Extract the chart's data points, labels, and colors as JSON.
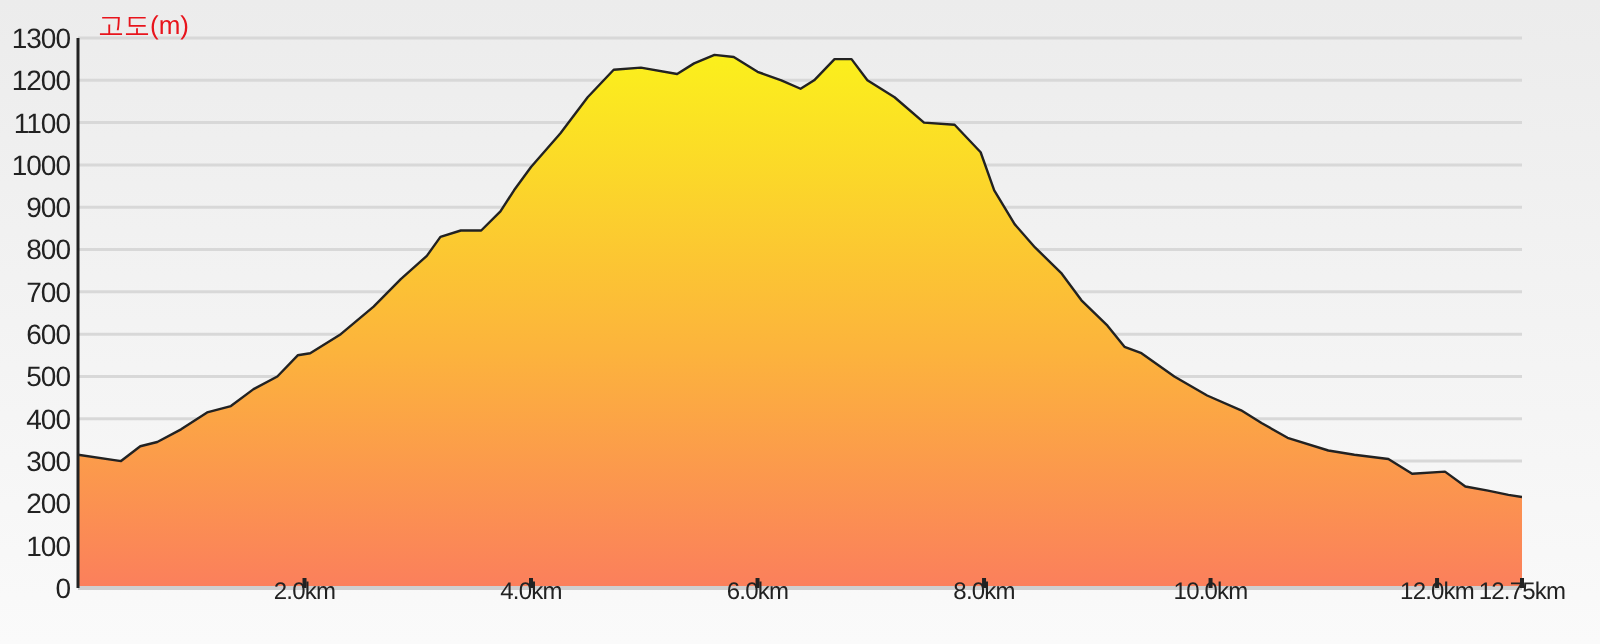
{
  "chart_data": {
    "type": "area",
    "ylabel": "고도(m)",
    "x": [
      0,
      0.38,
      0.55,
      0.7,
      0.91,
      1.14,
      1.35,
      1.55,
      1.76,
      1.94,
      2.05,
      2.32,
      2.61,
      2.85,
      3.08,
      3.2,
      3.38,
      3.56,
      3.73,
      3.85,
      4.0,
      4.26,
      4.5,
      4.73,
      4.97,
      5.29,
      5.44,
      5.62,
      5.79,
      6.0,
      6.21,
      6.38,
      6.5,
      6.68,
      6.83,
      6.97,
      7.21,
      7.47,
      7.74,
      7.97,
      8.09,
      8.27,
      8.45,
      8.68,
      8.86,
      9.09,
      9.24,
      9.39,
      9.68,
      9.97,
      10.27,
      10.45,
      10.68,
      11.04,
      11.27,
      11.57,
      11.78,
      12.07,
      12.25,
      12.45,
      12.63,
      12.75
    ],
    "series": [
      {
        "color": "#fcb43c",
        "values": [
          315,
          300,
          335,
          345,
          375,
          415,
          430,
          470,
          500,
          550,
          555,
          600,
          665,
          730,
          785,
          830,
          845,
          845,
          890,
          940,
          995,
          1075,
          1160,
          1225,
          1230,
          1215,
          1240,
          1260,
          1255,
          1220,
          1200,
          1180,
          1200,
          1250,
          1250,
          1200,
          1160,
          1100,
          1095,
          1030,
          940,
          860,
          805,
          745,
          680,
          620,
          570,
          555,
          500,
          455,
          420,
          390,
          355,
          325,
          315,
          305,
          270,
          275,
          240,
          230,
          220,
          215
        ]
      }
    ],
    "xlim": [
      0,
      12.75
    ],
    "xticks": [
      {
        "value": 2,
        "label": "2.0km"
      },
      {
        "value": 4,
        "label": "4.0km"
      },
      {
        "value": 6,
        "label": "6.0km"
      },
      {
        "value": 8,
        "label": "8.0km"
      },
      {
        "value": 10,
        "label": "10.0km"
      },
      {
        "value": 12,
        "label": "12.0km"
      },
      {
        "value": 12.75,
        "label": "12.75km"
      }
    ],
    "ylim": [
      0,
      1300
    ],
    "yticks": [
      0,
      100,
      200,
      300,
      400,
      500,
      600,
      700,
      800,
      900,
      1000,
      1100,
      1200,
      1300
    ],
    "grid": "y"
  }
}
